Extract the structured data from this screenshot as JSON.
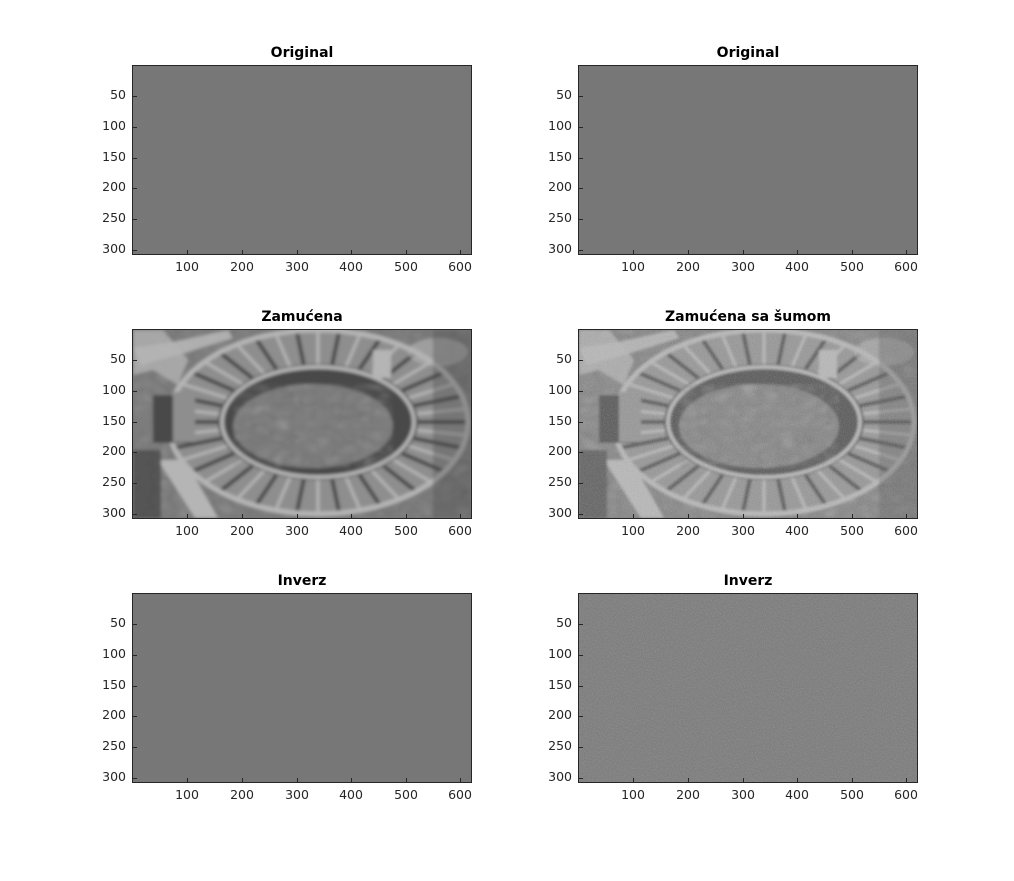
{
  "figure": {
    "panels": [
      {
        "id": "p1",
        "title": "Original",
        "variant": "original"
      },
      {
        "id": "p2",
        "title": "Original",
        "variant": "original"
      },
      {
        "id": "p3",
        "title": "Zamućena",
        "variant": "blurred"
      },
      {
        "id": "p4",
        "title": "Zamućena sa šumom",
        "variant": "blurred-noise"
      },
      {
        "id": "p5",
        "title": "Inverz",
        "variant": "inverse"
      },
      {
        "id": "p6",
        "title": "Inverz",
        "variant": "inverse-noise"
      }
    ],
    "yticks": [
      "50",
      "100",
      "150",
      "200",
      "250",
      "300"
    ],
    "xticks": [
      "100",
      "200",
      "300",
      "400",
      "500",
      "600"
    ],
    "image": {
      "subject": "aerial-amphitheater-grayscale"
    }
  }
}
